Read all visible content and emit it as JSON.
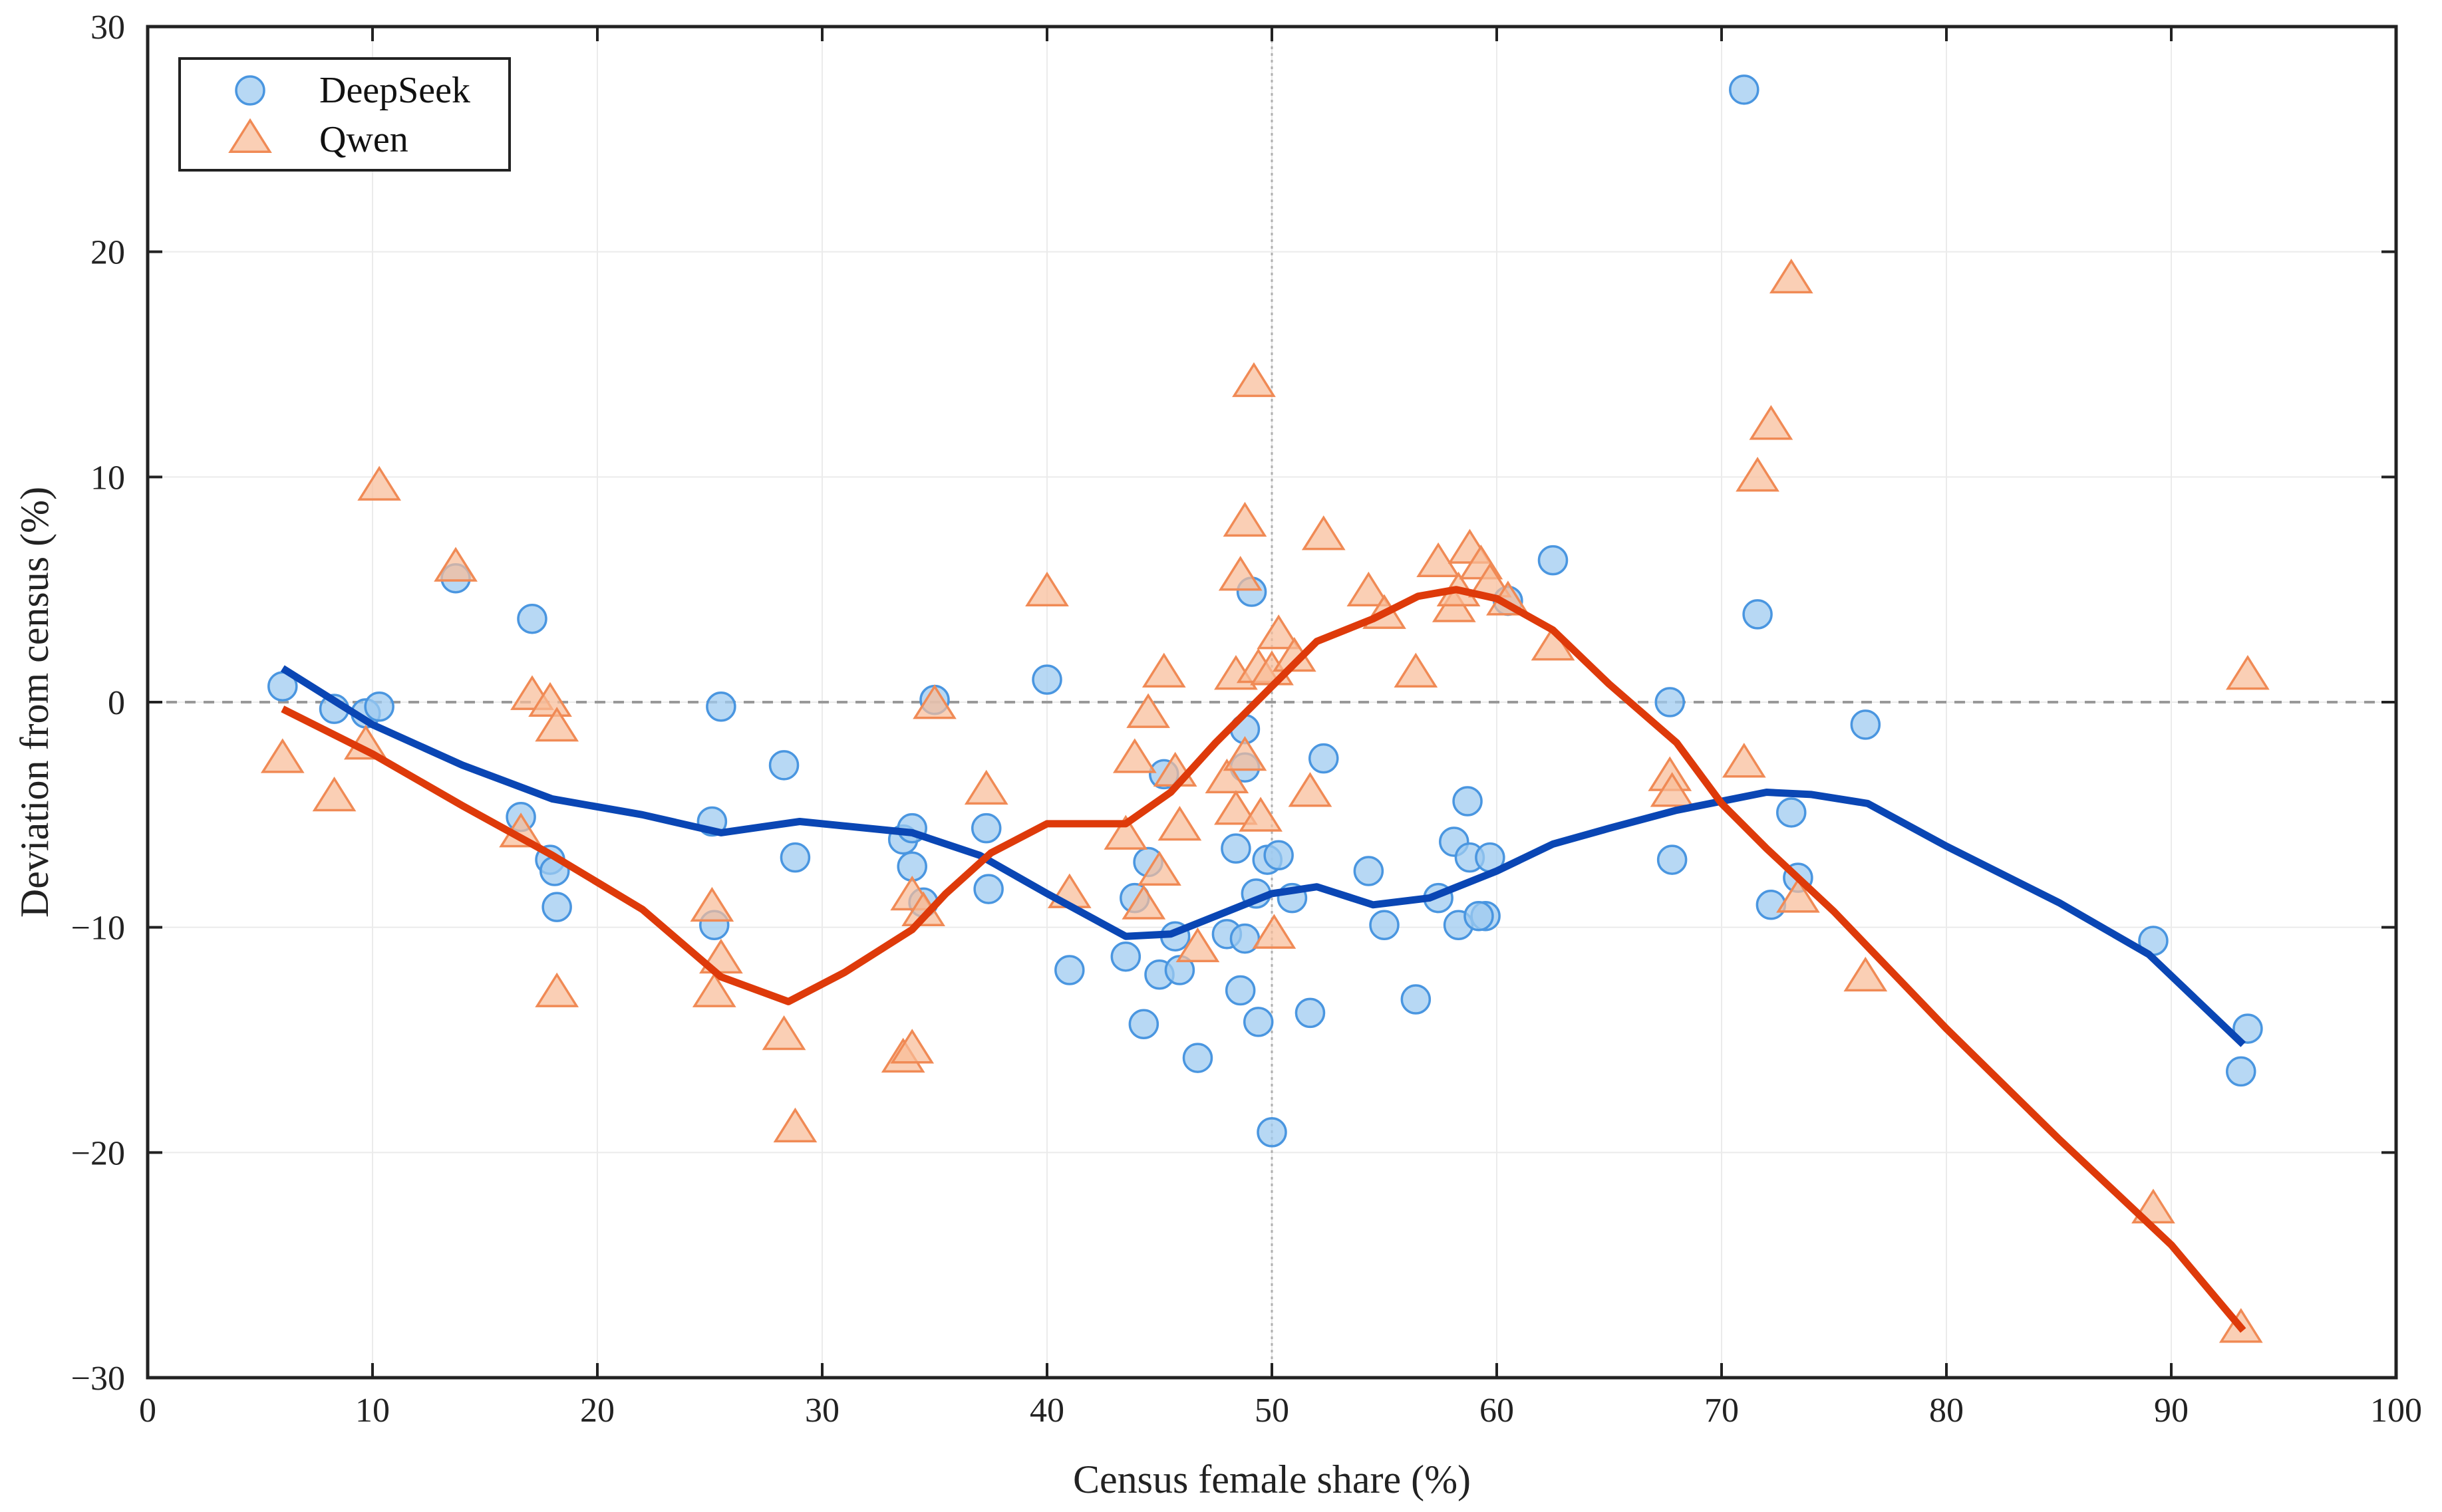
{
  "chart_data": {
    "type": "scatter",
    "title": "",
    "xlabel": "Census female share (%)",
    "ylabel": "Deviation from census (%)",
    "xlim": [
      0,
      100
    ],
    "ylim": [
      -30,
      30
    ],
    "xticks": [
      0,
      10,
      20,
      30,
      40,
      50,
      60,
      70,
      80,
      90,
      100
    ],
    "yticks": [
      -30,
      -20,
      -10,
      0,
      10,
      20,
      30
    ],
    "grid": true,
    "legend": {
      "position": "top-left",
      "entries": [
        "DeepSeek",
        "Qwen"
      ]
    },
    "reference_lines": {
      "x": 50,
      "y": 0
    },
    "colors": {
      "deepseek_marker_fill": "#9fcbf0",
      "deepseek_marker_edge": "#4a96e0",
      "qwen_marker_fill": "#f8bc98",
      "qwen_marker_edge": "#f08a55",
      "deepseek_line": "#0a46b4",
      "qwen_line": "#de3a0a",
      "axis": "#222222",
      "grid": "#ebebeb",
      "refline": "#999999"
    },
    "series": [
      {
        "name": "DeepSeek",
        "kind": "scatter",
        "marker": "circle",
        "points": [
          [
            6.0,
            0.7
          ],
          [
            8.3,
            -0.3
          ],
          [
            9.7,
            -0.5
          ],
          [
            10.3,
            -0.2
          ],
          [
            13.7,
            5.5
          ],
          [
            16.6,
            -5.1
          ],
          [
            17.1,
            3.7
          ],
          [
            17.9,
            -7.0
          ],
          [
            18.1,
            -7.5
          ],
          [
            18.2,
            -9.1
          ],
          [
            25.1,
            -5.3
          ],
          [
            25.2,
            -9.9
          ],
          [
            25.5,
            -0.2
          ],
          [
            28.3,
            -2.8
          ],
          [
            28.8,
            -6.9
          ],
          [
            33.6,
            -6.1
          ],
          [
            34.0,
            -5.6
          ],
          [
            34.0,
            -7.3
          ],
          [
            34.5,
            -8.9
          ],
          [
            35.0,
            0.1
          ],
          [
            37.3,
            -5.6
          ],
          [
            37.4,
            -8.3
          ],
          [
            40.0,
            1.0
          ],
          [
            41.0,
            -11.9
          ],
          [
            43.5,
            -11.3
          ],
          [
            43.9,
            -8.7
          ],
          [
            44.3,
            -14.3
          ],
          [
            44.5,
            -7.1
          ],
          [
            45.0,
            -12.1
          ],
          [
            45.2,
            -3.2
          ],
          [
            45.7,
            -10.4
          ],
          [
            45.9,
            -11.9
          ],
          [
            46.7,
            -15.8
          ],
          [
            48.0,
            -10.3
          ],
          [
            48.4,
            -6.5
          ],
          [
            48.6,
            -12.8
          ],
          [
            48.8,
            -1.2
          ],
          [
            48.8,
            -2.9
          ],
          [
            48.8,
            -10.5
          ],
          [
            49.1,
            4.9
          ],
          [
            49.3,
            -8.5
          ],
          [
            49.4,
            -14.2
          ],
          [
            49.8,
            -7.0
          ],
          [
            50.0,
            -19.1
          ],
          [
            50.3,
            -6.8
          ],
          [
            50.9,
            -8.7
          ],
          [
            51.7,
            -13.8
          ],
          [
            52.3,
            -2.5
          ],
          [
            54.3,
            -7.5
          ],
          [
            55.0,
            -9.9
          ],
          [
            56.4,
            -13.2
          ],
          [
            57.4,
            -8.7
          ],
          [
            58.1,
            -6.2
          ],
          [
            58.3,
            -9.9
          ],
          [
            58.7,
            -4.4
          ],
          [
            58.8,
            -6.9
          ],
          [
            59.5,
            -9.5
          ],
          [
            59.7,
            -6.9
          ],
          [
            60.5,
            4.5
          ],
          [
            62.5,
            6.3
          ],
          [
            67.7,
            0.0
          ],
          [
            67.8,
            -7.0
          ],
          [
            71.0,
            27.2
          ],
          [
            71.6,
            3.9
          ],
          [
            72.2,
            -9.0
          ],
          [
            73.1,
            -4.9
          ],
          [
            73.4,
            -7.8
          ],
          [
            76.4,
            -1.0
          ],
          [
            89.2,
            -10.6
          ],
          [
            93.1,
            -16.4
          ],
          [
            93.4,
            -14.5
          ],
          [
            59.2,
            -9.5
          ]
        ]
      },
      {
        "name": "Qwen",
        "kind": "scatter",
        "marker": "triangle",
        "points": [
          [
            6.0,
            -2.5
          ],
          [
            8.3,
            -4.2
          ],
          [
            9.7,
            -1.9
          ],
          [
            10.3,
            9.6
          ],
          [
            13.7,
            6.0
          ],
          [
            16.6,
            -5.8
          ],
          [
            17.1,
            0.3
          ],
          [
            17.9,
            0.0
          ],
          [
            18.2,
            -1.1
          ],
          [
            18.2,
            -12.9
          ],
          [
            25.1,
            -9.1
          ],
          [
            25.2,
            -12.9
          ],
          [
            25.5,
            -11.4
          ],
          [
            28.3,
            -14.8
          ],
          [
            28.8,
            -18.9
          ],
          [
            33.6,
            -15.8
          ],
          [
            34.0,
            -15.4
          ],
          [
            34.0,
            -8.6
          ],
          [
            34.5,
            -9.3
          ],
          [
            35.0,
            -0.1
          ],
          [
            37.3,
            -3.9
          ],
          [
            40.0,
            4.9
          ],
          [
            41.0,
            -8.5
          ],
          [
            43.5,
            -5.9
          ],
          [
            43.9,
            -2.5
          ],
          [
            44.3,
            -9.0
          ],
          [
            44.5,
            -0.5
          ],
          [
            45.0,
            -7.5
          ],
          [
            45.2,
            1.3
          ],
          [
            45.7,
            -3.1
          ],
          [
            45.9,
            -5.5
          ],
          [
            46.7,
            -10.9
          ],
          [
            48.0,
            -3.4
          ],
          [
            48.4,
            1.2
          ],
          [
            48.4,
            -4.8
          ],
          [
            48.6,
            5.6
          ],
          [
            48.8,
            8.0
          ],
          [
            48.8,
            -2.4
          ],
          [
            49.2,
            14.2
          ],
          [
            49.4,
            1.5
          ],
          [
            49.5,
            -5.1
          ],
          [
            50.0,
            1.4
          ],
          [
            50.1,
            -10.3
          ],
          [
            50.3,
            3.0
          ],
          [
            51.0,
            2.0
          ],
          [
            51.7,
            -4.0
          ],
          [
            52.3,
            7.4
          ],
          [
            54.3,
            4.9
          ],
          [
            55.0,
            3.9
          ],
          [
            56.4,
            1.3
          ],
          [
            57.4,
            6.2
          ],
          [
            58.1,
            4.2
          ],
          [
            58.3,
            4.9
          ],
          [
            58.8,
            6.8
          ],
          [
            59.3,
            6.1
          ],
          [
            59.7,
            5.3
          ],
          [
            60.5,
            4.5
          ],
          [
            62.5,
            2.5
          ],
          [
            67.7,
            -3.3
          ],
          [
            67.8,
            -4.0
          ],
          [
            71.0,
            -2.7
          ],
          [
            71.6,
            10.0
          ],
          [
            72.2,
            12.3
          ],
          [
            73.1,
            18.8
          ],
          [
            73.4,
            -8.7
          ],
          [
            76.4,
            -12.2
          ],
          [
            89.2,
            -22.5
          ],
          [
            93.1,
            -27.8
          ],
          [
            93.4,
            1.2
          ]
        ]
      },
      {
        "name": "DeepSeek trend",
        "kind": "line",
        "points": [
          [
            6,
            1.5
          ],
          [
            10,
            -1.0
          ],
          [
            14,
            -2.8
          ],
          [
            18,
            -4.3
          ],
          [
            22,
            -5.0
          ],
          [
            25.5,
            -5.8
          ],
          [
            29,
            -5.3
          ],
          [
            34,
            -5.8
          ],
          [
            37,
            -6.8
          ],
          [
            40,
            -8.5
          ],
          [
            43.5,
            -10.4
          ],
          [
            45.5,
            -10.3
          ],
          [
            48,
            -9.3
          ],
          [
            50,
            -8.5
          ],
          [
            52,
            -8.2
          ],
          [
            54.5,
            -9.0
          ],
          [
            57,
            -8.7
          ],
          [
            60,
            -7.5
          ],
          [
            62.5,
            -6.3
          ],
          [
            65,
            -5.6
          ],
          [
            68,
            -4.8
          ],
          [
            72,
            -4.0
          ],
          [
            74,
            -4.1
          ],
          [
            76.5,
            -4.5
          ],
          [
            80,
            -6.4
          ],
          [
            85,
            -8.9
          ],
          [
            89,
            -11.2
          ],
          [
            93.2,
            -15.2
          ]
        ]
      },
      {
        "name": "Qwen trend",
        "kind": "line",
        "points": [
          [
            6,
            -0.3
          ],
          [
            10,
            -2.3
          ],
          [
            14,
            -4.6
          ],
          [
            18,
            -6.8
          ],
          [
            22,
            -9.2
          ],
          [
            25.5,
            -12.2
          ],
          [
            28.5,
            -13.3
          ],
          [
            31,
            -12.0
          ],
          [
            34,
            -10.1
          ],
          [
            35.5,
            -8.5
          ],
          [
            37.5,
            -6.7
          ],
          [
            40,
            -5.4
          ],
          [
            43.5,
            -5.4
          ],
          [
            45.5,
            -4.0
          ],
          [
            47.5,
            -1.8
          ],
          [
            50,
            0.7
          ],
          [
            52,
            2.7
          ],
          [
            54.5,
            3.7
          ],
          [
            56.5,
            4.7
          ],
          [
            58.2,
            5.0
          ],
          [
            60,
            4.6
          ],
          [
            62.5,
            3.2
          ],
          [
            65,
            0.8
          ],
          [
            68,
            -1.8
          ],
          [
            70,
            -4.5
          ],
          [
            72,
            -6.5
          ],
          [
            75,
            -9.3
          ],
          [
            80,
            -14.5
          ],
          [
            85,
            -19.4
          ],
          [
            90,
            -24.1
          ],
          [
            93.2,
            -27.9
          ]
        ]
      }
    ]
  }
}
